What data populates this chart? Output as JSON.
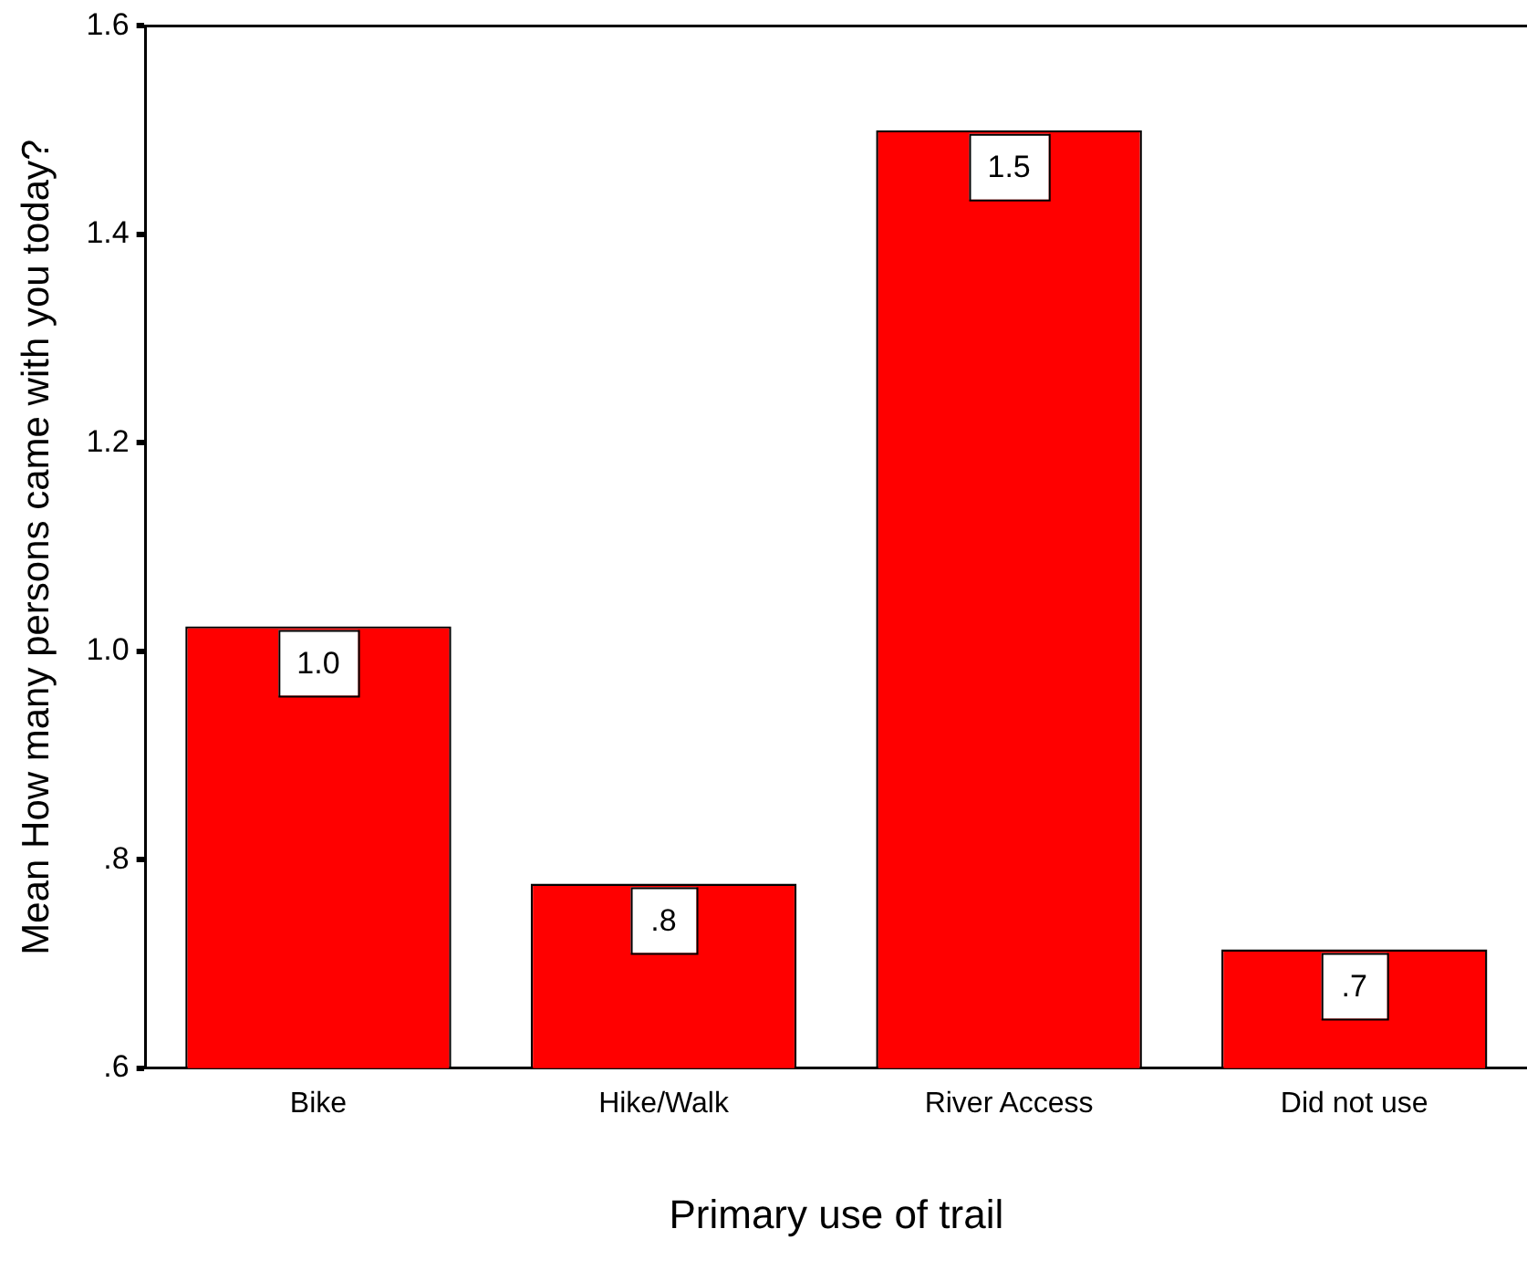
{
  "chart_data": {
    "type": "bar",
    "xlabel": "Primary use of trail",
    "ylabel": "Mean How many persons came with you today?",
    "categories": [
      "Bike",
      "Hike/Walk",
      "River Access",
      "Did not use"
    ],
    "values": [
      1.024,
      0.777,
      1.5,
      0.714
    ],
    "value_labels": [
      "1.0",
      ".8",
      "1.5",
      ".7"
    ],
    "color": "#ff0000",
    "ylim": [
      0.6,
      1.6
    ],
    "yticks": [
      {
        "value": 0.6,
        "label": ".6"
      },
      {
        "value": 0.8,
        "label": ".8"
      },
      {
        "value": 1.0,
        "label": "1.0"
      },
      {
        "value": 1.2,
        "label": "1.2"
      },
      {
        "value": 1.4,
        "label": "1.4"
      },
      {
        "value": 1.6,
        "label": "1.6"
      }
    ],
    "grid": false,
    "legend": false
  }
}
